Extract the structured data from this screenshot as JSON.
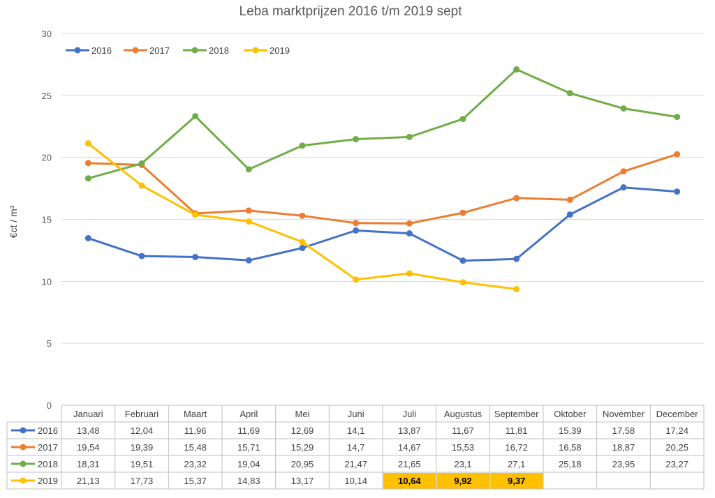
{
  "chart_data": {
    "type": "line",
    "title": "Leba marktprijzen 2016 t/m 2019 sept",
    "xlabel": "",
    "ylabel": "€ct / m³",
    "ylim": [
      0,
      30
    ],
    "yticks": [
      0,
      5,
      10,
      15,
      20,
      25,
      30
    ],
    "grid": true,
    "legend_position": "top-left",
    "categories": [
      "Januari",
      "Februari",
      "Maart",
      "April",
      "Mei",
      "Juni",
      "Juli",
      "Augustus",
      "September",
      "Oktober",
      "November",
      "December"
    ],
    "series": [
      {
        "name": "2016",
        "color": "#4472C4",
        "values": [
          13.48,
          12.04,
          11.96,
          11.69,
          12.69,
          14.1,
          13.87,
          11.67,
          11.81,
          15.39,
          17.58,
          17.24
        ],
        "labels": [
          "13,48",
          "12,04",
          "11,96",
          "11,69",
          "12,69",
          "14,1",
          "13,87",
          "11,67",
          "11,81",
          "15,39",
          "17,58",
          "17,24"
        ],
        "highlight": []
      },
      {
        "name": "2017",
        "color": "#ED7D31",
        "values": [
          19.54,
          19.39,
          15.48,
          15.71,
          15.29,
          14.7,
          14.67,
          15.53,
          16.72,
          16.58,
          18.87,
          20.25
        ],
        "labels": [
          "19,54",
          "19,39",
          "15,48",
          "15,71",
          "15,29",
          "14,7",
          "14,67",
          "15,53",
          "16,72",
          "16,58",
          "18,87",
          "20,25"
        ],
        "highlight": []
      },
      {
        "name": "2018",
        "color": "#70AD47",
        "values": [
          18.31,
          19.51,
          23.32,
          19.04,
          20.95,
          21.47,
          21.65,
          23.1,
          27.1,
          25.18,
          23.95,
          23.27
        ],
        "labels": [
          "18,31",
          "19,51",
          "23,32",
          "19,04",
          "20,95",
          "21,47",
          "21,65",
          "23,1",
          "27,1",
          "25,18",
          "23,95",
          "23,27"
        ],
        "highlight": []
      },
      {
        "name": "2019",
        "color": "#FFC000",
        "values": [
          21.13,
          17.73,
          15.37,
          14.83,
          13.17,
          10.14,
          10.64,
          9.92,
          9.37,
          null,
          null,
          null
        ],
        "labels": [
          "21,13",
          "17,73",
          "15,37",
          "14,83",
          "13,17",
          "10,14",
          "10,64",
          "9,92",
          "9,37",
          "",
          "",
          ""
        ],
        "highlight": [
          6,
          7,
          8
        ]
      }
    ],
    "highlight_color": "#FFC000"
  }
}
